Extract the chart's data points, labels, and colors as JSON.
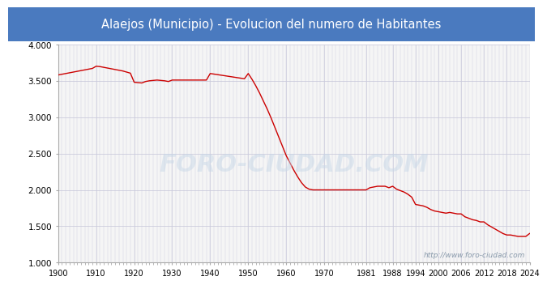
{
  "title": "Alaejos (Municipio) - Evolucion del numero de Habitantes",
  "title_bg_color": "#4a7abf",
  "title_text_color": "white",
  "plot_bg_color": "#f5f5f5",
  "grid_color": "#ccccdd",
  "line_color": "#cc0000",
  "watermark_text": "http://www.foro-ciudad.com",
  "watermark_color": "#aabbcc",
  "foro_watermark": "FORO-CIUDAD.COM",
  "years": [
    1900,
    1901,
    1902,
    1903,
    1904,
    1905,
    1906,
    1907,
    1908,
    1909,
    1910,
    1911,
    1912,
    1913,
    1914,
    1915,
    1916,
    1917,
    1918,
    1919,
    1920,
    1921,
    1922,
    1923,
    1924,
    1925,
    1926,
    1927,
    1928,
    1929,
    1930,
    1931,
    1932,
    1933,
    1934,
    1935,
    1936,
    1937,
    1938,
    1939,
    1940,
    1941,
    1942,
    1943,
    1944,
    1945,
    1946,
    1947,
    1948,
    1949,
    1950,
    1951,
    1952,
    1953,
    1954,
    1955,
    1956,
    1957,
    1958,
    1959,
    1960,
    1961,
    1962,
    1963,
    1964,
    1965,
    1966,
    1967,
    1968,
    1969,
    1970,
    1971,
    1972,
    1973,
    1974,
    1975,
    1976,
    1977,
    1978,
    1979,
    1980,
    1981,
    1982,
    1983,
    1984,
    1985,
    1986,
    1987,
    1988,
    1989,
    1990,
    1991,
    1992,
    1993,
    1994,
    1995,
    1996,
    1997,
    1998,
    1999,
    2000,
    2001,
    2002,
    2003,
    2004,
    2005,
    2006,
    2007,
    2008,
    2009,
    2010,
    2011,
    2012,
    2013,
    2014,
    2015,
    2016,
    2017,
    2018,
    2019,
    2020,
    2021,
    2022,
    2023,
    2024
  ],
  "population": [
    3580,
    3590,
    3600,
    3610,
    3620,
    3630,
    3640,
    3650,
    3660,
    3670,
    3700,
    3695,
    3685,
    3675,
    3665,
    3655,
    3645,
    3635,
    3620,
    3605,
    3480,
    3475,
    3470,
    3490,
    3500,
    3505,
    3510,
    3505,
    3500,
    3490,
    3510,
    3510,
    3510,
    3510,
    3510,
    3510,
    3510,
    3510,
    3510,
    3510,
    3600,
    3592,
    3584,
    3576,
    3568,
    3560,
    3552,
    3544,
    3536,
    3528,
    3600,
    3520,
    3430,
    3330,
    3220,
    3110,
    2990,
    2860,
    2730,
    2600,
    2470,
    2370,
    2270,
    2180,
    2100,
    2040,
    2010,
    2000,
    2000,
    2000,
    2000,
    2000,
    2000,
    2000,
    2000,
    2000,
    2000,
    2000,
    2000,
    2000,
    2000,
    2000,
    2030,
    2040,
    2050,
    2050,
    2050,
    2030,
    2050,
    2010,
    1990,
    1970,
    1940,
    1900,
    1800,
    1790,
    1780,
    1760,
    1730,
    1710,
    1700,
    1690,
    1680,
    1690,
    1680,
    1670,
    1670,
    1630,
    1610,
    1590,
    1580,
    1560,
    1560,
    1520,
    1490,
    1460,
    1430,
    1400,
    1380,
    1380,
    1370,
    1360,
    1360,
    1360,
    1400
  ],
  "xlim": [
    1900,
    2024
  ],
  "ylim": [
    1000,
    4000
  ],
  "yticks": [
    1000,
    1500,
    2000,
    2500,
    3000,
    3500,
    4000
  ],
  "xticks": [
    1900,
    1910,
    1920,
    1930,
    1940,
    1950,
    1960,
    1970,
    1981,
    1988,
    1994,
    2000,
    2006,
    2012,
    2018,
    2024
  ]
}
